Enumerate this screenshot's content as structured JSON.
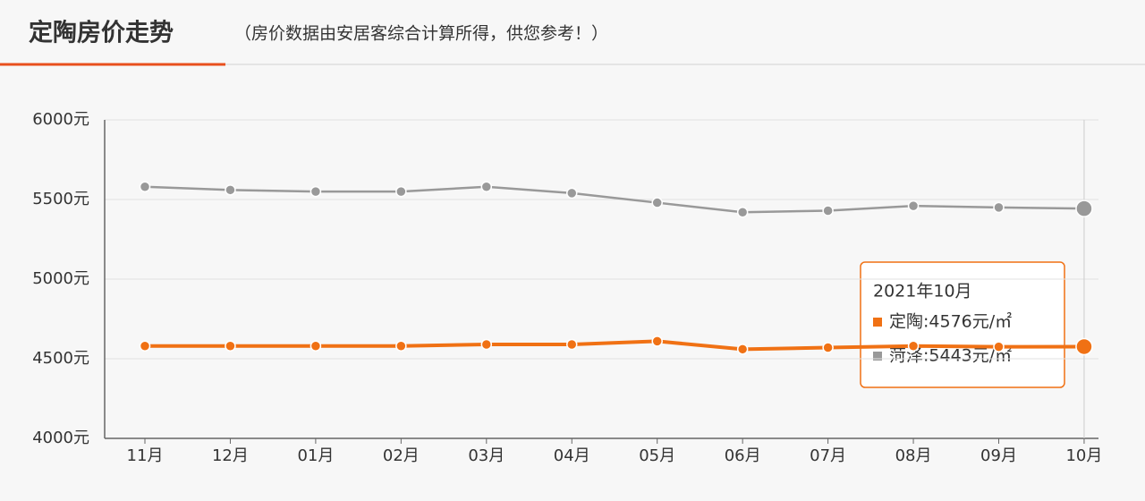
{
  "header": {
    "title": "定陶房价走势",
    "subtitle": "（房价数据由安居客综合计算所得，供您参考！）"
  },
  "chart_data": {
    "type": "line",
    "categories": [
      "11月",
      "12月",
      "01月",
      "02月",
      "03月",
      "04月",
      "05月",
      "06月",
      "07月",
      "08月",
      "09月",
      "10月"
    ],
    "series": [
      {
        "name": "定陶",
        "color": "#f07114",
        "values": [
          4580,
          4580,
          4580,
          4580,
          4590,
          4590,
          4610,
          4560,
          4570,
          4580,
          4575,
          4576
        ]
      },
      {
        "name": "菏泽",
        "color": "#999999",
        "values": [
          5580,
          5560,
          5550,
          5550,
          5580,
          5540,
          5480,
          5420,
          5430,
          5460,
          5450,
          5443
        ]
      }
    ],
    "ylim": [
      4000,
      6000
    ],
    "yticks": [
      {
        "value": 4000,
        "label": "4000元"
      },
      {
        "value": 4500,
        "label": "4500元"
      },
      {
        "value": 5000,
        "label": "5000元"
      },
      {
        "value": 5500,
        "label": "5500元"
      },
      {
        "value": 6000,
        "label": "6000元"
      }
    ],
    "grid": true,
    "tooltip": {
      "title": "2021年10月",
      "lines": [
        "定陶:4576元/㎡",
        "菏泽:5443元/㎡"
      ]
    }
  }
}
